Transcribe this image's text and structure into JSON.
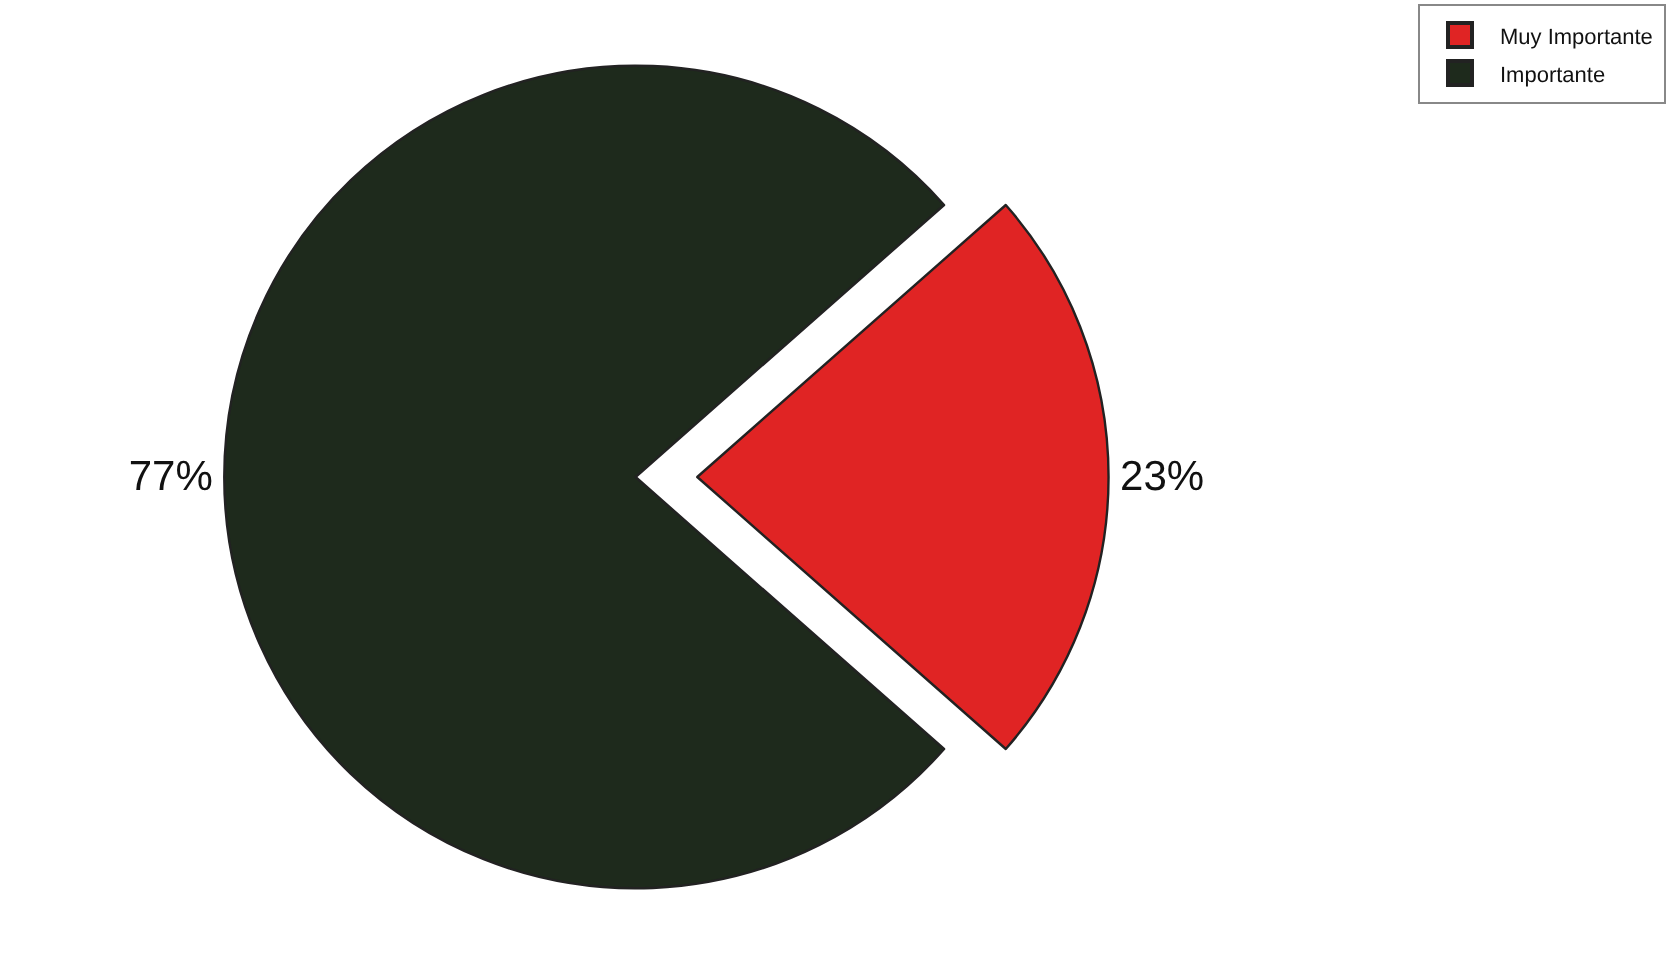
{
  "chart_data": {
    "type": "pie",
    "categories": [
      "Muy Importante",
      "Importante"
    ],
    "values": [
      23,
      77
    ],
    "colors": [
      "#e02424",
      "#1e2a1c"
    ],
    "value_labels": [
      "23%",
      "77%"
    ],
    "legend": "top right"
  }
}
